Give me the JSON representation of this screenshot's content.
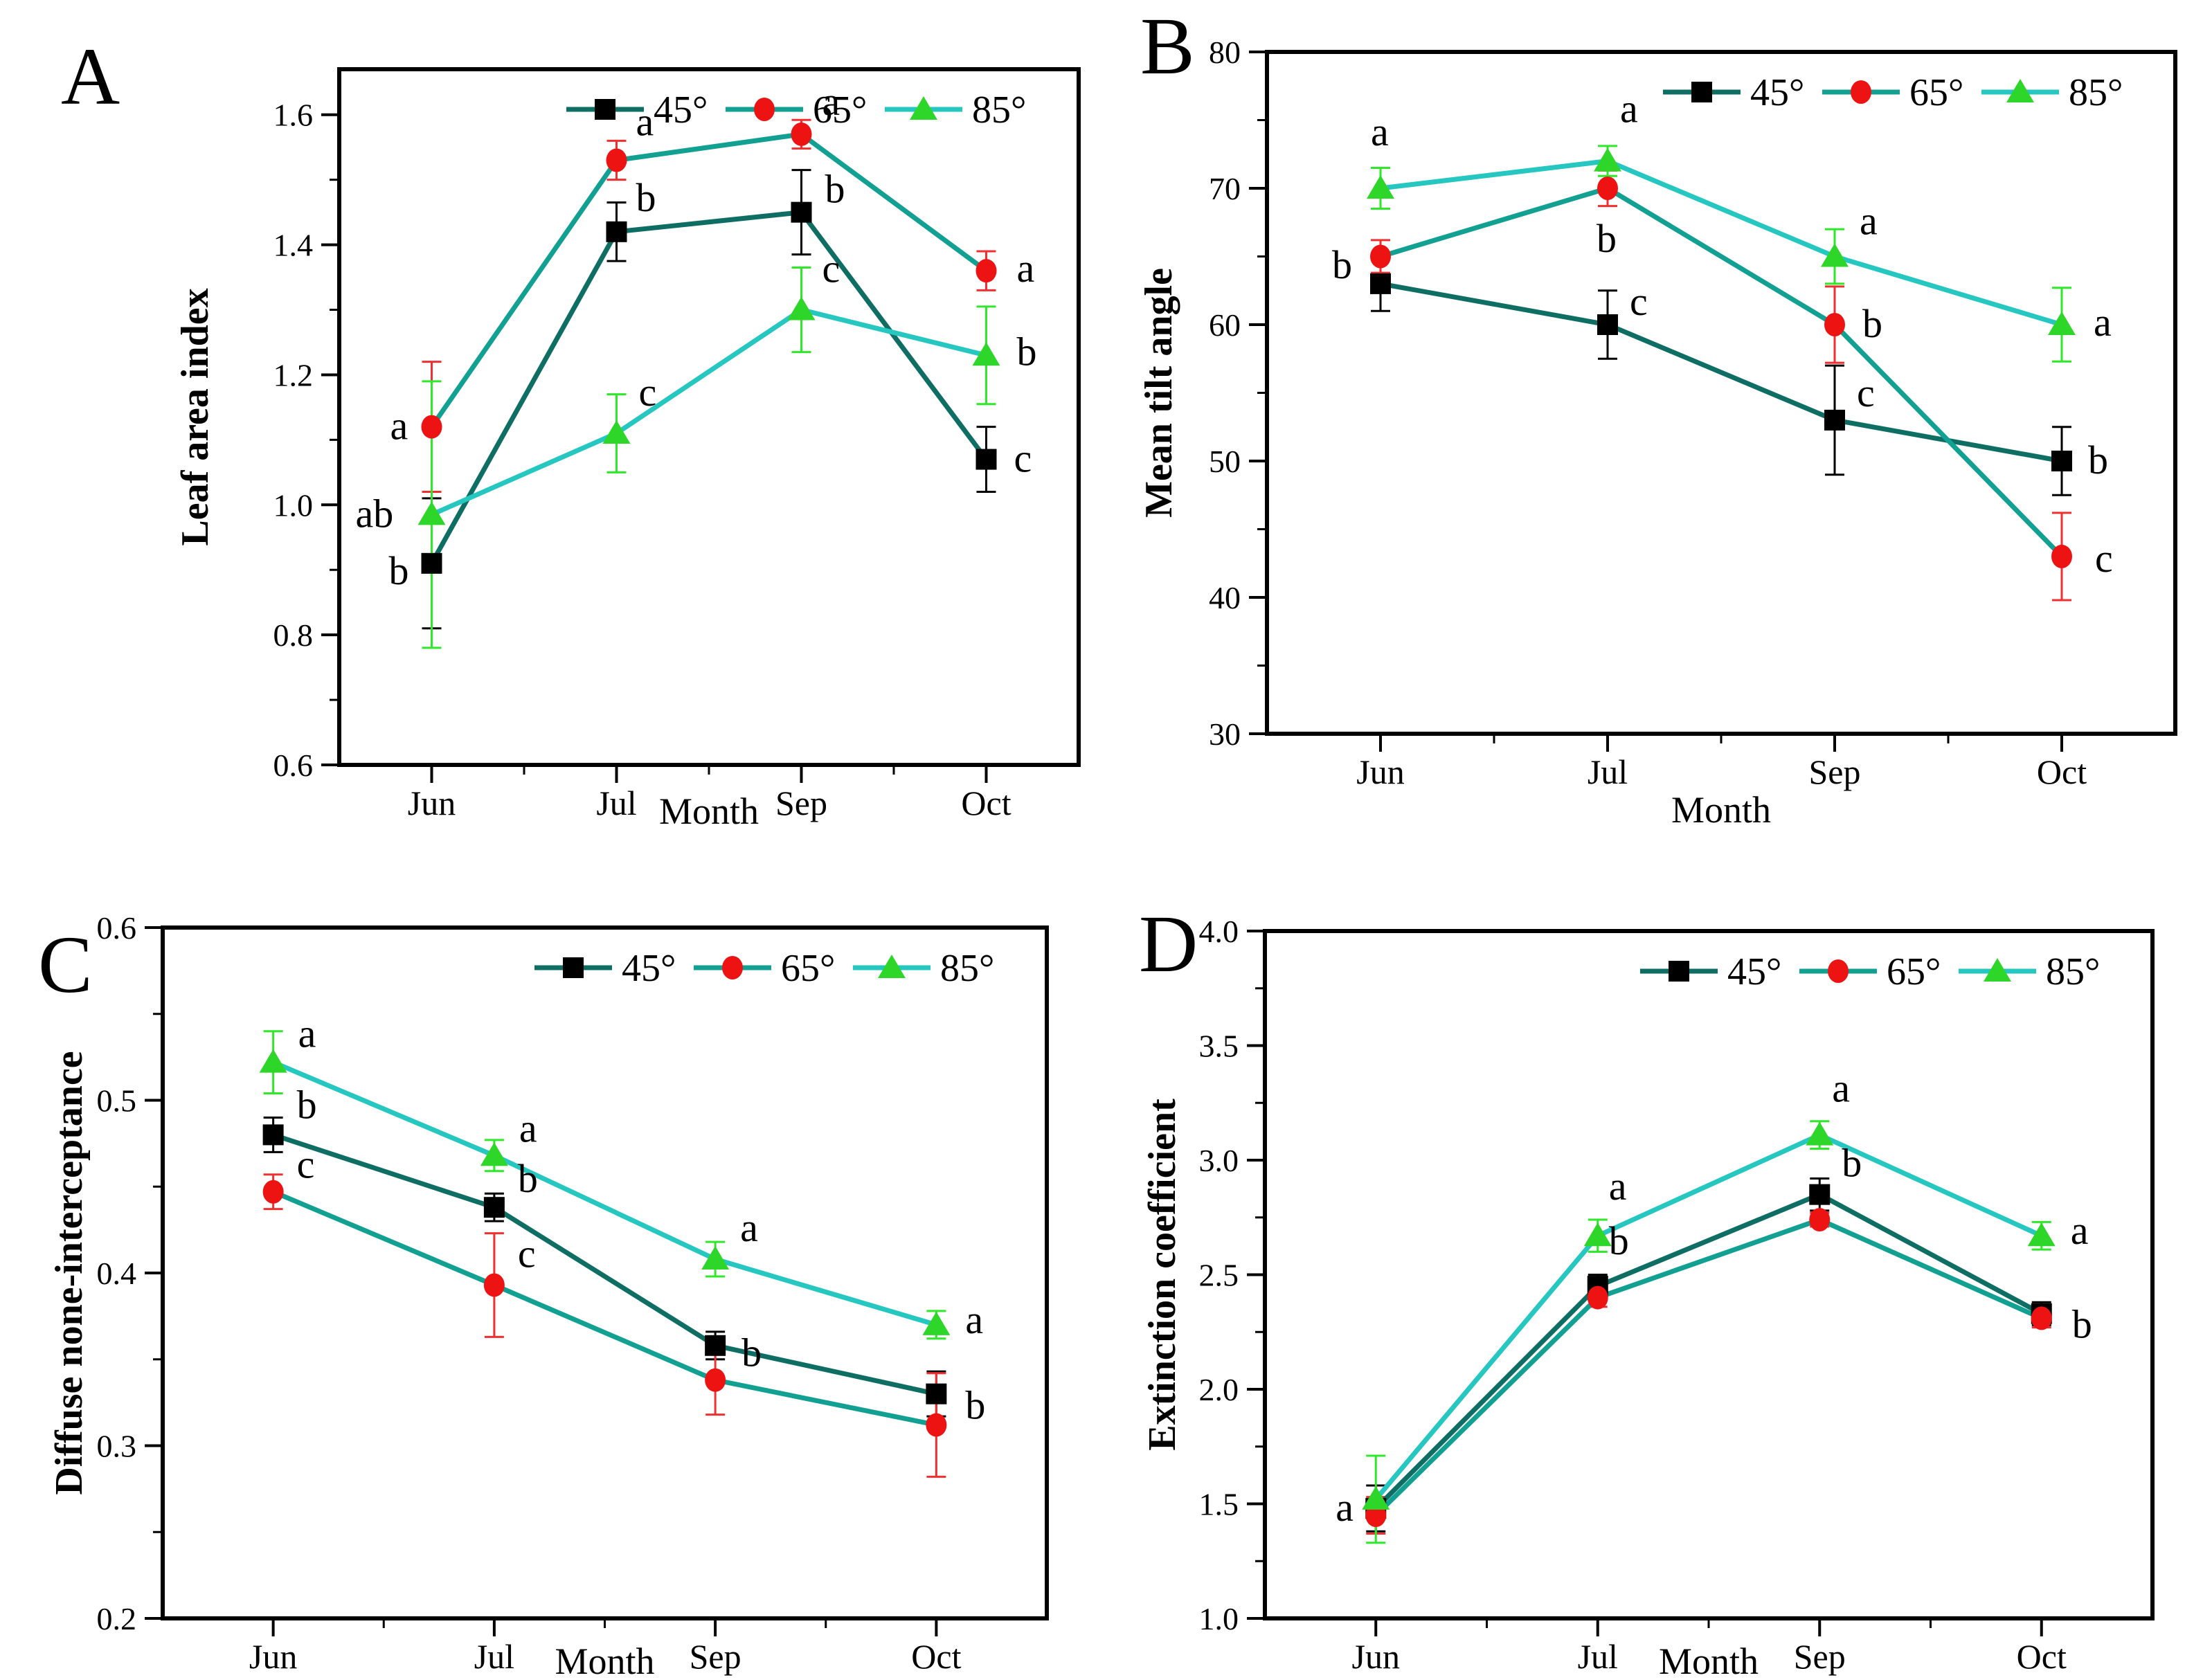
{
  "figure": {
    "xlabel": "Month",
    "categories": [
      "Jun",
      "Jul",
      "Sep",
      "Oct"
    ],
    "legend_labels": [
      "45°",
      "65°",
      "85°"
    ],
    "colors": {
      "line_45": "#0f6e64",
      "line_65": "#11a091",
      "line_85": "#25c7c0",
      "marker_45": "#000000",
      "marker_65": "#ed1313",
      "marker_85": "#2fd62a",
      "frame": "#000000",
      "background": "#ffffff"
    }
  },
  "chart_data": [
    {
      "panel": "A",
      "type": "line",
      "title": "",
      "xlabel": "Month",
      "ylabel": "Leaf area index",
      "ylim": [
        0.6,
        1.67
      ],
      "yticks": [
        "0.6",
        "0.8",
        "1.0",
        "1.2",
        "1.4",
        "1.6"
      ],
      "yminor": [
        0.7,
        0.9,
        1.1,
        1.3,
        1.5
      ],
      "categories": [
        "Jun",
        "Jul",
        "Sep",
        "Oct"
      ],
      "legend_position": "top-right-inside",
      "grid": false,
      "series": [
        {
          "name": "45°",
          "marker": "square",
          "marker_color": "#000000",
          "line_color": "#0f6e64",
          "err_color": "#000000",
          "values": [
            0.91,
            1.42,
            1.45,
            1.07
          ],
          "errors": [
            0.1,
            0.045,
            0.065,
            0.05
          ],
          "letters": [
            [
              "b",
              -62,
              30
            ],
            [
              "b",
              28,
              -30
            ],
            [
              "b",
              34,
              -14
            ],
            [
              "c",
              40,
              18
            ]
          ]
        },
        {
          "name": "65°",
          "marker": "circle",
          "marker_color": "#ed1313",
          "line_color": "#11a091",
          "err_color": "#f03030",
          "values": [
            1.12,
            1.53,
            1.57,
            1.36
          ],
          "errors": [
            0.1,
            0.03,
            0.022,
            0.03
          ],
          "letters": [
            [
              "a",
              -60,
              18
            ],
            [
              "a",
              28,
              -36
            ],
            [
              "a",
              30,
              -28
            ],
            [
              "a",
              44,
              16
            ]
          ]
        },
        {
          "name": "85°",
          "marker": "triangle",
          "marker_color": "#2fd62a",
          "line_color": "#25c7c0",
          "err_color": "#2ee829",
          "values": [
            0.985,
            1.11,
            1.3,
            1.23
          ],
          "errors": [
            0.205,
            0.06,
            0.065,
            0.075
          ],
          "letters": [
            [
              "ab",
              -110,
              18
            ],
            [
              "c",
              32,
              -40
            ],
            [
              "c",
              30,
              -40
            ],
            [
              "b",
              44,
              14
            ]
          ]
        }
      ]
    },
    {
      "panel": "B",
      "type": "line",
      "title": "",
      "xlabel": "Month",
      "ylabel": "Mean tilt angle",
      "ylim": [
        30,
        80
      ],
      "yticks": [
        "30",
        "40",
        "50",
        "60",
        "70",
        "80"
      ],
      "yminor": [
        35,
        45,
        55,
        65,
        75
      ],
      "categories": [
        "Jun",
        "Jul",
        "Sep",
        "Oct"
      ],
      "legend_position": "top-right-inside",
      "grid": false,
      "series": [
        {
          "name": "45°",
          "marker": "square",
          "marker_color": "#000000",
          "line_color": "#0f6e64",
          "err_color": "#000000",
          "values": [
            63,
            60,
            53,
            50
          ],
          "errors": [
            2.0,
            2.5,
            4.0,
            2.5
          ],
          "letters": [
            [
              "b",
              -70,
              -8
            ],
            [
              "c",
              32,
              -14
            ],
            [
              "c",
              32,
              -20
            ],
            [
              "b",
              38,
              18
            ]
          ]
        },
        {
          "name": "65°",
          "marker": "circle",
          "marker_color": "#ed1313",
          "line_color": "#11a091",
          "err_color": "#f03030",
          "values": [
            65,
            70,
            60,
            43
          ],
          "errors": [
            1.2,
            1.3,
            2.8,
            3.2
          ],
          "letters": [
            null,
            [
              "b",
              -16,
              92
            ],
            [
              "b",
              40,
              18
            ],
            [
              "c",
              48,
              22
            ]
          ]
        },
        {
          "name": "85°",
          "marker": "triangle",
          "marker_color": "#2fd62a",
          "line_color": "#25c7c0",
          "err_color": "#2ee829",
          "values": [
            70,
            72,
            65,
            60
          ],
          "errors": [
            1.5,
            1.1,
            2.0,
            2.7
          ],
          "letters": [
            [
              "a",
              -14,
              -62
            ],
            [
              "a",
              18,
              -56
            ],
            [
              "a",
              36,
              -32
            ],
            [
              "a",
              46,
              16
            ]
          ]
        }
      ]
    },
    {
      "panel": "C",
      "type": "line",
      "title": "",
      "xlabel": "Month",
      "ylabel": "Diffuse none-interceptance",
      "ylim": [
        0.2,
        0.6
      ],
      "yticks": [
        "0.2",
        "0.3",
        "0.4",
        "0.5",
        "0.6"
      ],
      "yminor": [
        0.25,
        0.35,
        0.45,
        0.55
      ],
      "categories": [
        "Jun",
        "Jul",
        "Sep",
        "Oct"
      ],
      "legend_position": "top-right-inside",
      "grid": false,
      "series": [
        {
          "name": "45°",
          "marker": "square",
          "marker_color": "#000000",
          "line_color": "#0f6e64",
          "err_color": "#000000",
          "values": [
            0.48,
            0.438,
            0.358,
            0.33
          ],
          "errors": [
            0.01,
            0.008,
            0.008,
            0.013
          ],
          "letters": [
            [
              "b",
              34,
              -24
            ],
            [
              "b",
              34,
              -22
            ],
            null,
            [
              "b",
              42,
              36
            ]
          ]
        },
        {
          "name": "65°",
          "marker": "circle",
          "marker_color": "#ed1313",
          "line_color": "#11a091",
          "err_color": "#f03030",
          "values": [
            0.447,
            0.393,
            0.338,
            0.312
          ],
          "errors": [
            0.01,
            0.03,
            0.02,
            0.03
          ],
          "letters": [
            [
              "c",
              34,
              -20
            ],
            [
              "c",
              34,
              -26
            ],
            [
              "b",
              38,
              -20
            ],
            null
          ]
        },
        {
          "name": "85°",
          "marker": "triangle",
          "marker_color": "#2fd62a",
          "line_color": "#25c7c0",
          "err_color": "#2ee829",
          "values": [
            0.522,
            0.468,
            0.408,
            0.37
          ],
          "errors": [
            0.018,
            0.009,
            0.01,
            0.008
          ],
          "letters": [
            [
              "a",
              36,
              -22
            ],
            [
              "a",
              36,
              -20
            ],
            [
              "a",
              36,
              -26
            ],
            [
              "a",
              42,
              12
            ]
          ]
        }
      ]
    },
    {
      "panel": "D",
      "type": "line",
      "title": "",
      "xlabel": "Month",
      "ylabel": "Extinction coefficient",
      "ylim": [
        1.0,
        4.0
      ],
      "yticks": [
        "1.0",
        "1.5",
        "2.0",
        "2.5",
        "3.0",
        "3.5",
        "4.0"
      ],
      "yminor": [
        1.25,
        1.75,
        2.25,
        2.75,
        3.25,
        3.75
      ],
      "categories": [
        "Jun",
        "Jul",
        "Sep",
        "Oct"
      ],
      "legend_position": "top-right-inside",
      "grid": false,
      "series": [
        {
          "name": "45°",
          "marker": "square",
          "marker_color": "#000000",
          "line_color": "#0f6e64",
          "err_color": "#000000",
          "values": [
            1.48,
            2.45,
            2.85,
            2.33
          ],
          "errors": [
            0.1,
            0.05,
            0.07,
            0.05
          ],
          "letters": [
            [
              "a",
              -58,
              18
            ],
            [
              "b",
              16,
              -46
            ],
            [
              "b",
              32,
              -26
            ],
            null
          ]
        },
        {
          "name": "65°",
          "marker": "circle",
          "marker_color": "#ed1313",
          "line_color": "#11a091",
          "err_color": "#f03030",
          "values": [
            1.45,
            2.4,
            2.74,
            2.31
          ],
          "errors": [
            0.08,
            0.04,
            0.03,
            0.04
          ],
          "letters": [
            null,
            null,
            null,
            [
              "b",
              44,
              28
            ]
          ]
        },
        {
          "name": "85°",
          "marker": "triangle",
          "marker_color": "#2fd62a",
          "line_color": "#25c7c0",
          "err_color": "#2ee829",
          "values": [
            1.52,
            2.67,
            3.11,
            2.67
          ],
          "errors": [
            0.19,
            0.07,
            0.06,
            0.06
          ],
          "letters": [
            null,
            [
              "a",
              16,
              -52
            ],
            [
              "a",
              18,
              -48
            ],
            [
              "a",
              42,
              12
            ]
          ]
        }
      ]
    }
  ]
}
